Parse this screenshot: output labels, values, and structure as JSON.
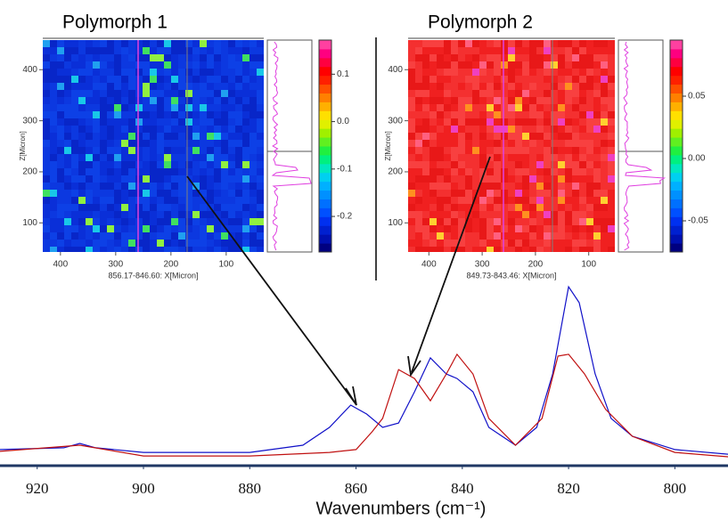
{
  "chart_data": [
    {
      "type": "heatmap",
      "title": "Polymorph 1",
      "xlabel": "856.17-846.60: X[Micron]",
      "ylabel": "Z[Micron]",
      "xlim": [
        432,
        32
      ],
      "xticks": [
        400,
        300,
        200,
        100
      ],
      "ylim": [
        43,
        458
      ],
      "yticks": [
        100,
        200,
        300,
        400
      ],
      "colorbar_lim": [
        -0.275,
        0.172
      ],
      "colorbar_ticks": [
        0.1,
        {
          "value": 0,
          "label": "0.0"
        },
        -0.1,
        -0.2
      ],
      "palette": "blue"
    },
    {
      "type": "heatmap",
      "title": "Polymorph 2",
      "xlabel": "849.73-843.46: X[Micron]",
      "ylabel": "Z[Micron]",
      "xlim": [
        439,
        51
      ],
      "xticks": [
        400,
        300,
        200,
        100
      ],
      "ylim": [
        43,
        458
      ],
      "yticks": [
        100,
        200,
        300,
        400
      ],
      "colorbar_lim": [
        -0.075,
        0.095
      ],
      "colorbar_ticks": [
        0.05,
        {
          "value": 0,
          "label": "0.00"
        },
        -0.05
      ],
      "palette": "red"
    },
    {
      "type": "line",
      "xlabel": "Wavenumbers (cm⁻¹)",
      "xlim": [
        927,
        790
      ],
      "xticks": [
        920,
        900,
        880,
        860,
        840,
        820,
        800
      ],
      "ylim": [
        0,
        1
      ],
      "series": [
        {
          "color": "#1010c8",
          "x": [
            927,
            915,
            912,
            909,
            900,
            880,
            870,
            865,
            861,
            858,
            855,
            852,
            849,
            846,
            843,
            841,
            838,
            835,
            830,
            826,
            823,
            820,
            818,
            815,
            812,
            808,
            800,
            790
          ],
          "values": [
            0.081,
            0.09,
            0.112,
            0.09,
            0.067,
            0.067,
            0.103,
            0.193,
            0.305,
            0.26,
            0.193,
            0.215,
            0.372,
            0.543,
            0.462,
            0.439,
            0.372,
            0.193,
            0.103,
            0.193,
            0.462,
            0.901,
            0.821,
            0.462,
            0.238,
            0.148,
            0.081,
            0.058
          ]
        },
        {
          "color": "#c01010",
          "x": [
            927,
            912,
            900,
            880,
            865,
            860,
            857,
            855,
            852,
            849,
            846,
            843,
            841,
            838,
            835,
            830,
            825,
            822,
            820,
            817,
            813,
            808,
            800,
            790
          ],
          "values": [
            0.072,
            0.103,
            0.049,
            0.049,
            0.067,
            0.081,
            0.17,
            0.238,
            0.484,
            0.439,
            0.327,
            0.462,
            0.561,
            0.462,
            0.238,
            0.103,
            0.238,
            0.552,
            0.561,
            0.462,
            0.283,
            0.148,
            0.067,
            0.045
          ]
        }
      ]
    }
  ]
}
